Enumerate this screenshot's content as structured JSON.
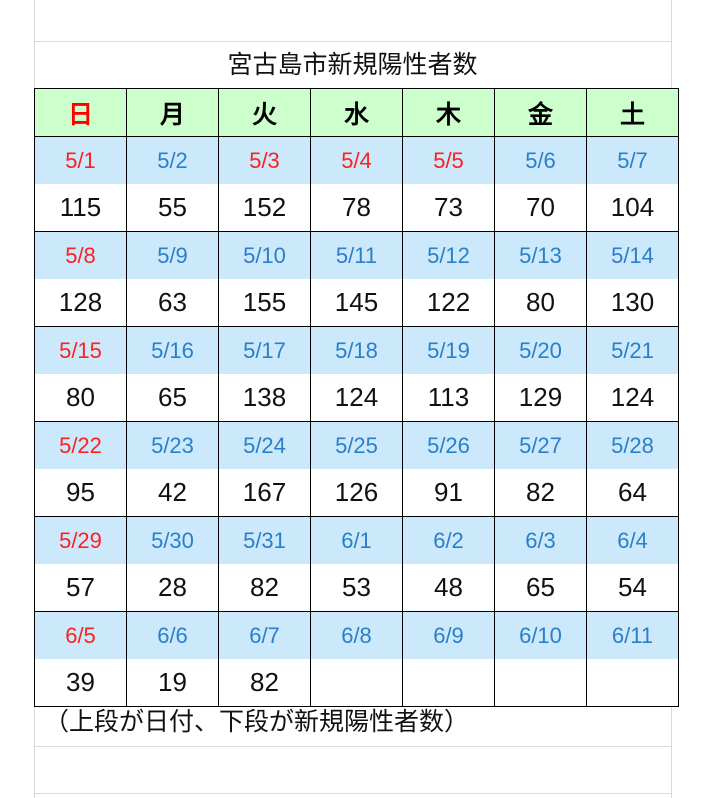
{
  "title": "宮古島市新規陽性者数",
  "weekdays": [
    {
      "label": "日",
      "color": "#ff0000"
    },
    {
      "label": "月",
      "color": "#000000"
    },
    {
      "label": "火",
      "color": "#000000"
    },
    {
      "label": "水",
      "color": "#000000"
    },
    {
      "label": "木",
      "color": "#000000"
    },
    {
      "label": "金",
      "color": "#000000"
    },
    {
      "label": "土",
      "color": "#000000"
    }
  ],
  "colors": {
    "holiday": "#ff2020",
    "weekday": "#2a7fc9",
    "header_bg": "#ccffcc",
    "date_bg": "#cce9fb"
  },
  "weeks": [
    {
      "dates": [
        "5/1",
        "5/2",
        "5/3",
        "5/4",
        "5/5",
        "5/6",
        "5/7"
      ],
      "holidays": [
        true,
        false,
        true,
        true,
        true,
        false,
        false
      ],
      "counts": [
        "115",
        "55",
        "152",
        "78",
        "73",
        "70",
        "104"
      ]
    },
    {
      "dates": [
        "5/8",
        "5/9",
        "5/10",
        "5/11",
        "5/12",
        "5/13",
        "5/14"
      ],
      "holidays": [
        true,
        false,
        false,
        false,
        false,
        false,
        false
      ],
      "counts": [
        "128",
        "63",
        "155",
        "145",
        "122",
        "80",
        "130"
      ]
    },
    {
      "dates": [
        "5/15",
        "5/16",
        "5/17",
        "5/18",
        "5/19",
        "5/20",
        "5/21"
      ],
      "holidays": [
        true,
        false,
        false,
        false,
        false,
        false,
        false
      ],
      "counts": [
        "80",
        "65",
        "138",
        "124",
        "113",
        "129",
        "124"
      ]
    },
    {
      "dates": [
        "5/22",
        "5/23",
        "5/24",
        "5/25",
        "5/26",
        "5/27",
        "5/28"
      ],
      "holidays": [
        true,
        false,
        false,
        false,
        false,
        false,
        false
      ],
      "counts": [
        "95",
        "42",
        "167",
        "126",
        "91",
        "82",
        "64"
      ]
    },
    {
      "dates": [
        "5/29",
        "5/30",
        "5/31",
        "6/1",
        "6/2",
        "6/3",
        "6/4"
      ],
      "holidays": [
        true,
        false,
        false,
        false,
        false,
        false,
        false
      ],
      "counts": [
        "57",
        "28",
        "82",
        "53",
        "48",
        "65",
        "54"
      ]
    },
    {
      "dates": [
        "6/5",
        "6/6",
        "6/7",
        "6/8",
        "6/9",
        "6/10",
        "6/11"
      ],
      "holidays": [
        true,
        false,
        false,
        false,
        false,
        false,
        false
      ],
      "counts": [
        "39",
        "19",
        "82",
        "",
        "",
        "",
        ""
      ]
    }
  ],
  "note": "（上段が日付、下段が新規陽性者数）"
}
